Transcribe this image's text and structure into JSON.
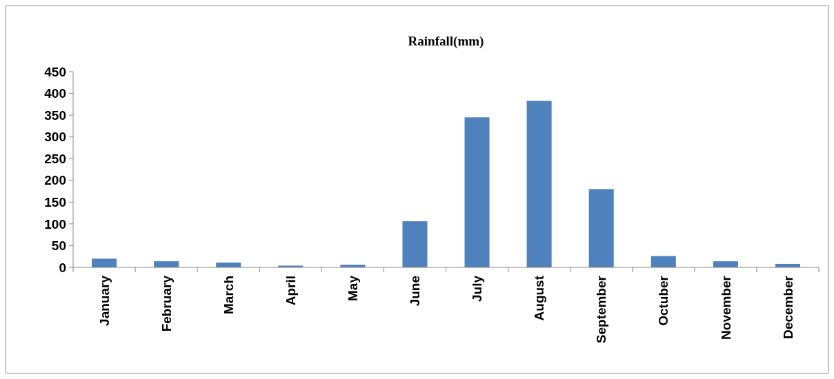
{
  "chart_data": {
    "type": "bar",
    "title": "Rainfall(mm)",
    "categories": [
      "January",
      "February",
      "March",
      "April",
      "May",
      "June",
      "July",
      "August",
      "September",
      "Octuber",
      "November",
      "December"
    ],
    "values": [
      20,
      14,
      11,
      4,
      6,
      106,
      345,
      383,
      180,
      26,
      14,
      8
    ],
    "color": "#4f81bd",
    "ylim": [
      0,
      450
    ],
    "yticks": [
      0,
      50,
      100,
      150,
      200,
      250,
      300,
      350,
      400,
      450
    ]
  }
}
